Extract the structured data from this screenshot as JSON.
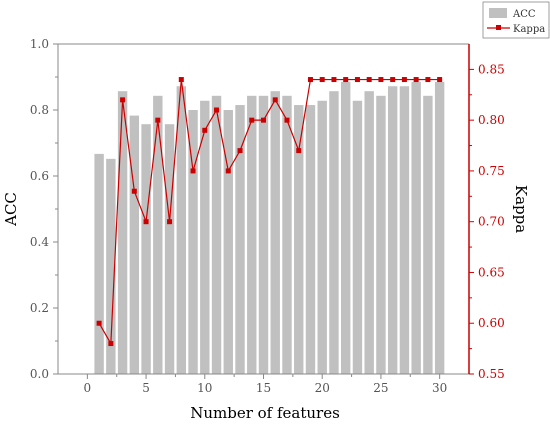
{
  "chart_data": {
    "type": "bar+line",
    "xlabel": "Number of features",
    "ylabel_left": "ACC",
    "ylabel_right": "Kappa",
    "x_ticks": [
      0,
      5,
      10,
      15,
      20,
      25,
      30
    ],
    "x_range": [
      -2.5,
      32.5
    ],
    "left_ticks": [
      "0.0",
      "0.2",
      "0.4",
      "0.6",
      "0.8",
      "1.0"
    ],
    "right_ticks": [
      "0.55",
      "0.60",
      "0.65",
      "0.70",
      "0.75",
      "0.80",
      "0.85"
    ],
    "ylim_left": [
      0,
      1
    ],
    "ylim_right": [
      0.55,
      0.875
    ],
    "grid": false,
    "legend_position": "top-right",
    "x": [
      1,
      2,
      3,
      4,
      5,
      6,
      7,
      8,
      9,
      10,
      11,
      12,
      13,
      14,
      15,
      16,
      17,
      18,
      19,
      20,
      21,
      22,
      23,
      24,
      25,
      26,
      27,
      28,
      29,
      30
    ],
    "series": [
      {
        "name": "ACC",
        "kind": "bar",
        "axis": "left",
        "color": "#c0c0c0",
        "values": [
          0.667,
          0.652,
          0.857,
          0.783,
          0.757,
          0.843,
          0.757,
          0.872,
          0.8,
          0.828,
          0.843,
          0.8,
          0.815,
          0.843,
          0.843,
          0.857,
          0.843,
          0.815,
          0.815,
          0.828,
          0.857,
          0.885,
          0.828,
          0.857,
          0.843,
          0.872,
          0.872,
          0.885,
          0.843,
          0.885
        ]
      },
      {
        "name": "Kappa",
        "kind": "line",
        "axis": "right",
        "color": "#cc0000",
        "values": [
          0.6,
          0.58,
          0.82,
          0.73,
          0.7,
          0.8,
          0.7,
          0.84,
          0.75,
          0.79,
          0.81,
          0.75,
          0.77,
          0.8,
          0.8,
          0.82,
          0.8,
          0.77,
          0.84,
          0.84,
          0.84,
          0.84,
          0.84,
          0.84,
          0.84,
          0.84,
          0.84,
          0.84,
          0.84,
          0.84
        ]
      }
    ]
  }
}
